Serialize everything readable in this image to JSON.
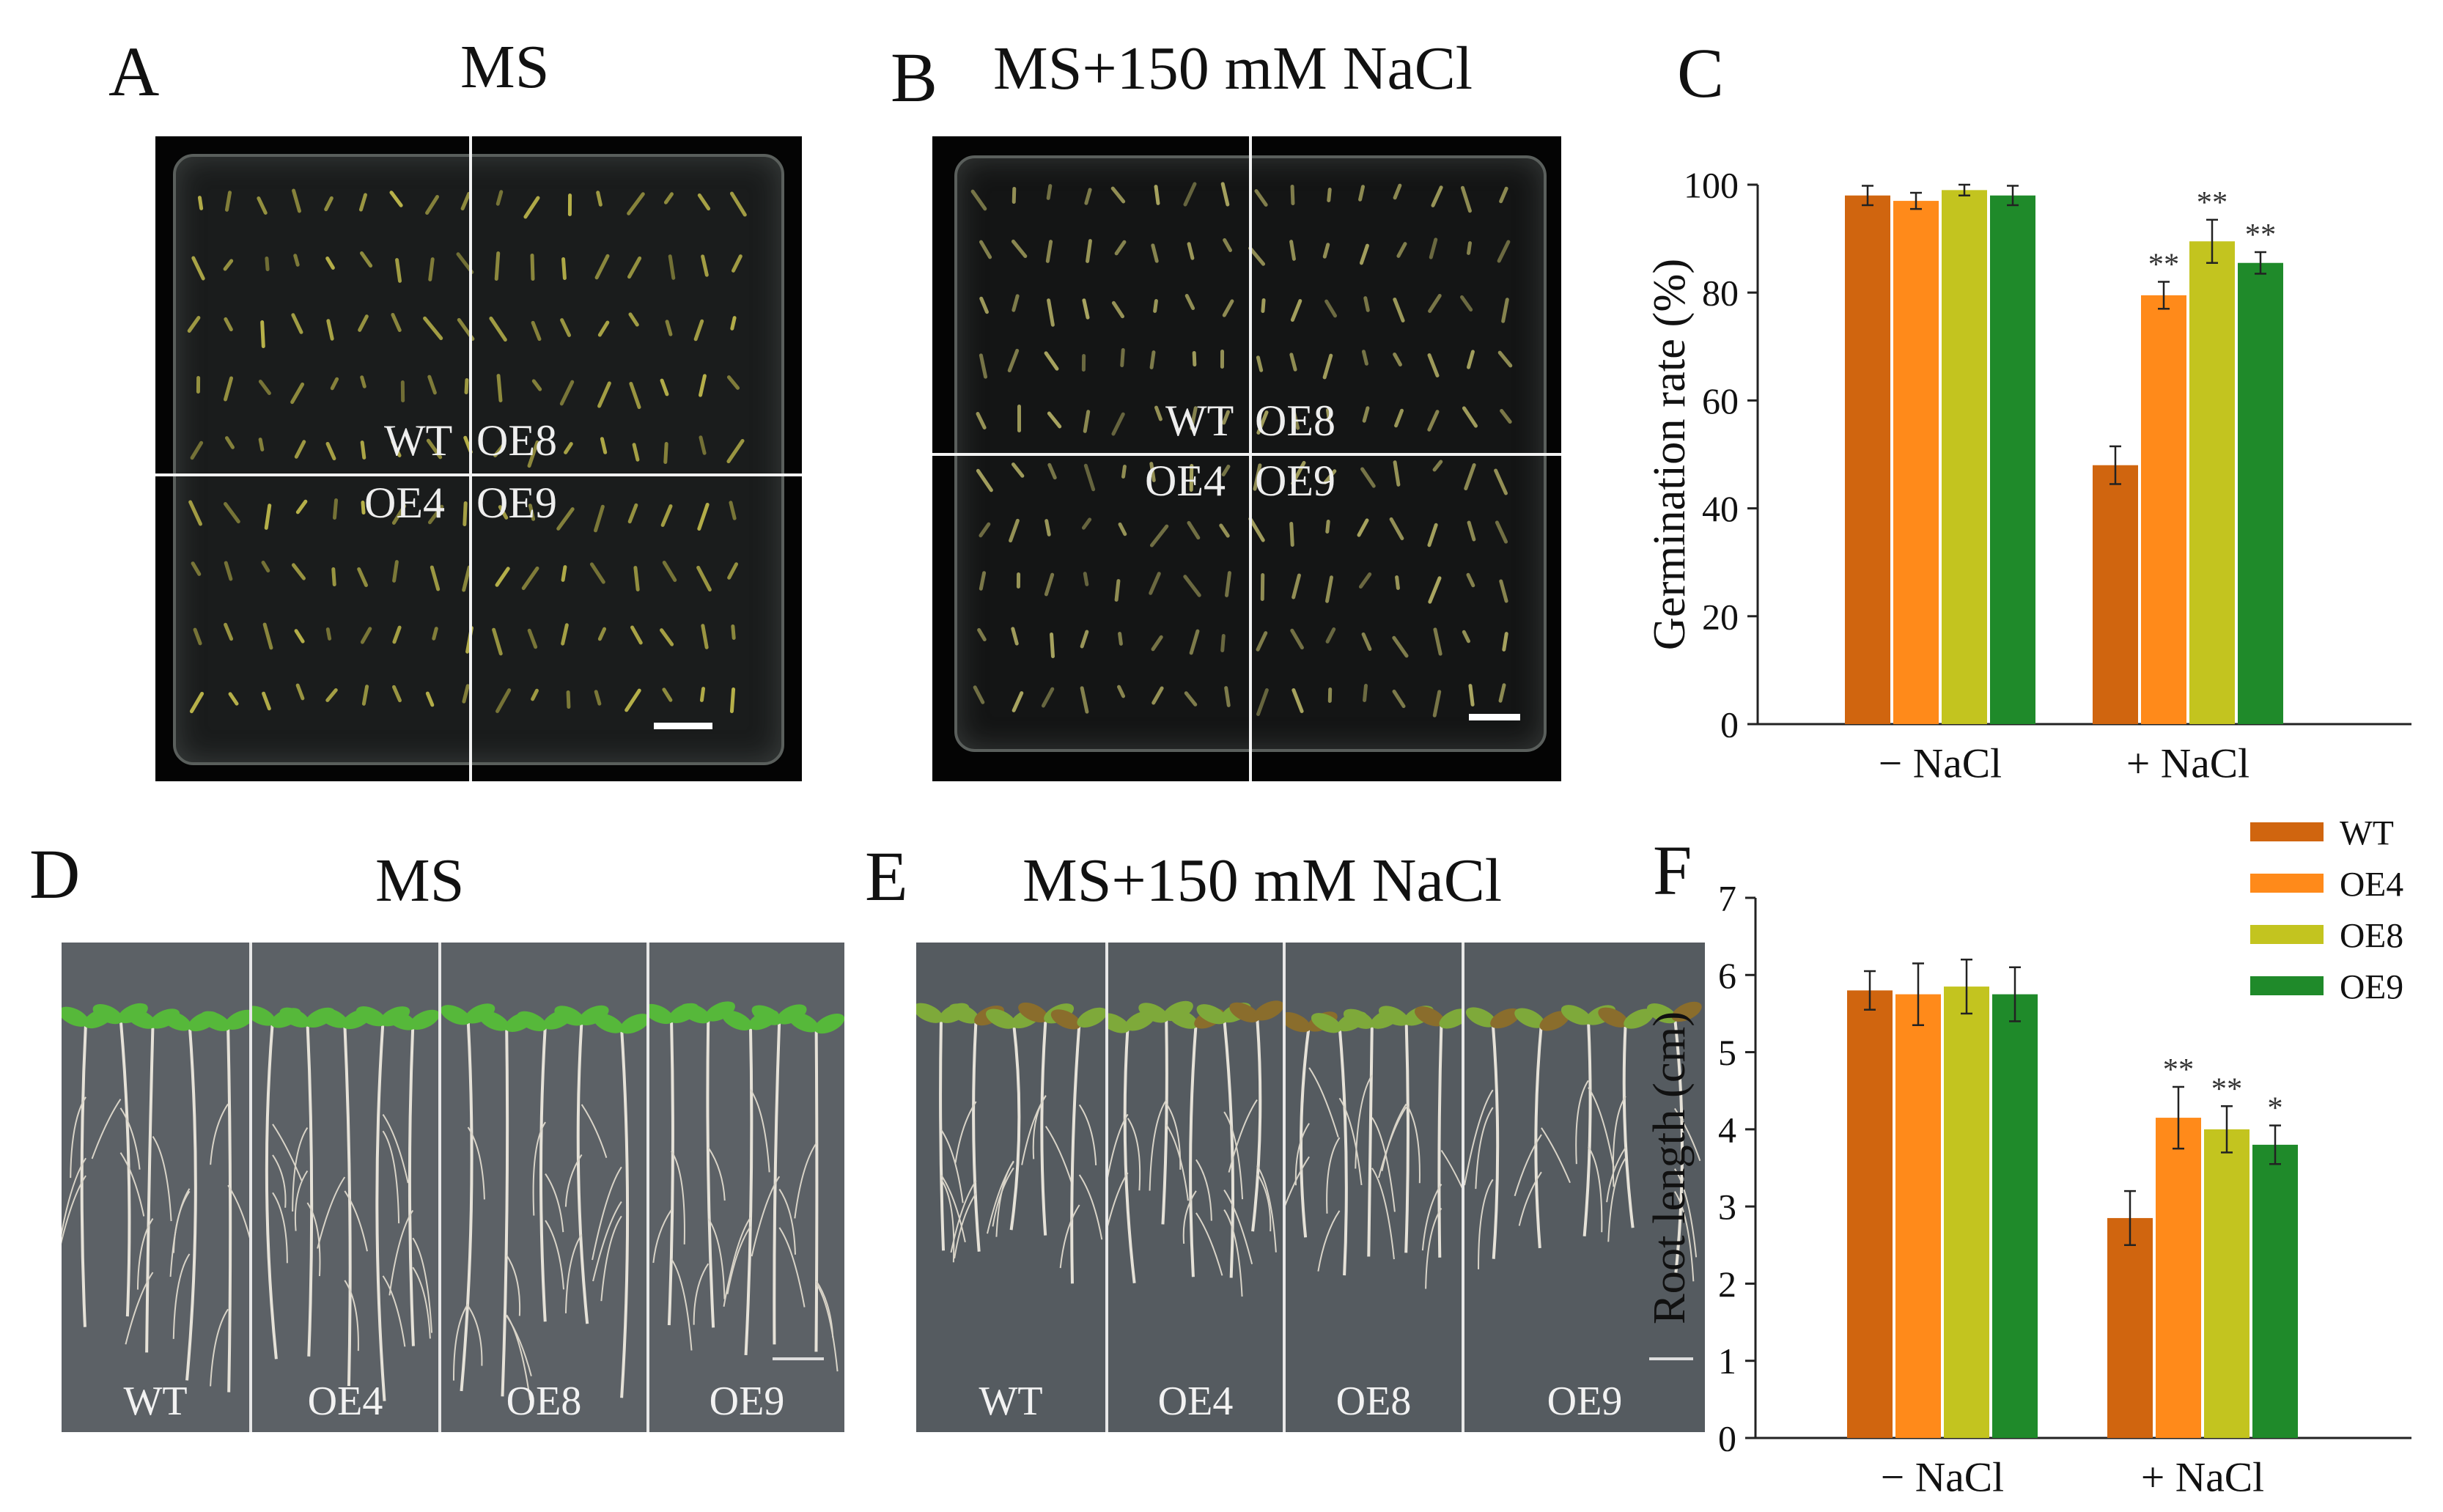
{
  "panels": {
    "A": {
      "letter": "A",
      "title": "MS",
      "labels": [
        "WT",
        "OE8",
        "OE4",
        "OE9"
      ]
    },
    "B": {
      "letter": "B",
      "title": "MS+150 mM NaCl",
      "labels": [
        "WT",
        "OE8",
        "OE4",
        "OE9"
      ]
    },
    "C": {
      "letter": "C"
    },
    "D": {
      "letter": "D",
      "title": "MS",
      "strips": [
        "WT",
        "OE4",
        "OE8",
        "OE9"
      ]
    },
    "E": {
      "letter": "E",
      "title": "MS+150 mM NaCl",
      "strips": [
        "WT",
        "OE4",
        "OE8",
        "OE9"
      ]
    },
    "F": {
      "letter": "F"
    }
  },
  "colors": {
    "WT": "#d0650f",
    "OE4": "#ff8a1a",
    "OE8": "#c3c41f",
    "OE9": "#1f8a2a"
  },
  "chart_data": [
    {
      "id": "C",
      "type": "bar",
      "ylabel": "Germination rate (%)",
      "categories": [
        "− NaCl",
        "+ NaCl"
      ],
      "ylim": [
        0,
        100
      ],
      "yticks": [
        0,
        20,
        40,
        60,
        80,
        100
      ],
      "series": [
        {
          "name": "WT",
          "values": [
            98,
            48
          ],
          "errors": [
            1.8,
            3.5
          ],
          "sig": [
            "",
            ""
          ]
        },
        {
          "name": "OE4",
          "values": [
            97,
            79.5
          ],
          "errors": [
            1.5,
            2.5
          ],
          "sig": [
            "",
            "**"
          ]
        },
        {
          "name": "OE8",
          "values": [
            99,
            89.5
          ],
          "errors": [
            1,
            4
          ],
          "sig": [
            "",
            "**"
          ]
        },
        {
          "name": "OE9",
          "values": [
            98,
            85.5
          ],
          "errors": [
            1.8,
            2
          ],
          "sig": [
            "",
            "**"
          ]
        }
      ]
    },
    {
      "id": "F",
      "type": "bar",
      "ylabel": "Root length (cm)",
      "categories": [
        "− NaCl",
        "+ NaCl"
      ],
      "ylim": [
        0,
        7
      ],
      "yticks": [
        0,
        1,
        2,
        3,
        4,
        5,
        6,
        7
      ],
      "legend": [
        "WT",
        "OE4",
        "OE8",
        "OE9"
      ],
      "series": [
        {
          "name": "WT",
          "values": [
            5.8,
            2.85
          ],
          "errors": [
            0.25,
            0.35
          ],
          "sig": [
            "",
            ""
          ]
        },
        {
          "name": "OE4",
          "values": [
            5.75,
            4.15
          ],
          "errors": [
            0.4,
            0.4
          ],
          "sig": [
            "",
            "**"
          ]
        },
        {
          "name": "OE8",
          "values": [
            5.85,
            4.0
          ],
          "errors": [
            0.35,
            0.3
          ],
          "sig": [
            "",
            "**"
          ]
        },
        {
          "name": "OE9",
          "values": [
            5.75,
            3.8
          ],
          "errors": [
            0.35,
            0.25
          ],
          "sig": [
            "",
            "*"
          ]
        }
      ]
    }
  ]
}
